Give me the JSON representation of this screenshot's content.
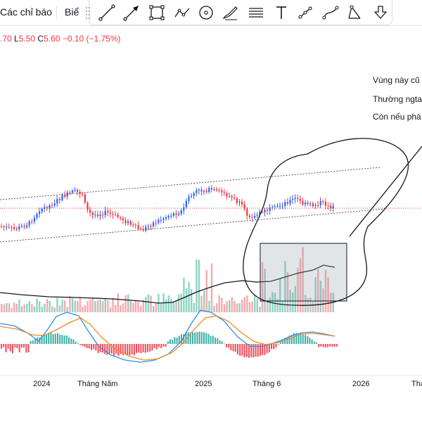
{
  "toolbar": {
    "indicators_label": "Các chỉ báo",
    "template_label": "Biể",
    "drawing_tools": [
      {
        "icon": "trend-line-icon"
      },
      {
        "icon": "arrow-icon"
      },
      {
        "icon": "rectangle-icon"
      },
      {
        "icon": "path-icon"
      },
      {
        "icon": "circle-icon"
      },
      {
        "icon": "brush-icon"
      },
      {
        "icon": "horizontal-lines-icon"
      },
      {
        "icon": "text-icon"
      },
      {
        "icon": "measure-icon"
      },
      {
        "icon": "curve-icon"
      },
      {
        "icon": "triangle-pattern-icon"
      },
      {
        "icon": "arrow-down-icon"
      }
    ]
  },
  "ohlc": {
    "prefix": ".70",
    "low_label": "L",
    "low": "5.50",
    "close_label": "C",
    "close": "5.60",
    "change": "−0.10 (−1.75%)"
  },
  "annotations": [
    "Vùng này cũ",
    "Thường ngta",
    "Còn nếu phá"
  ],
  "time_axis": [
    "2024",
    "Tháng Năm",
    "2025",
    "Tháng 6",
    "2026",
    "Tha"
  ],
  "colors": {
    "up": "#2962ff",
    "down": "#f23645",
    "volume_up": "#8ed3c4",
    "volume_down": "#f7a9ae",
    "macd_line": "#2f8ee8",
    "signal_line": "#f08a22",
    "hist_up": "#26a69a",
    "hist_down": "#f23645",
    "drawing": "#131722",
    "price_line": "#f23645"
  }
}
